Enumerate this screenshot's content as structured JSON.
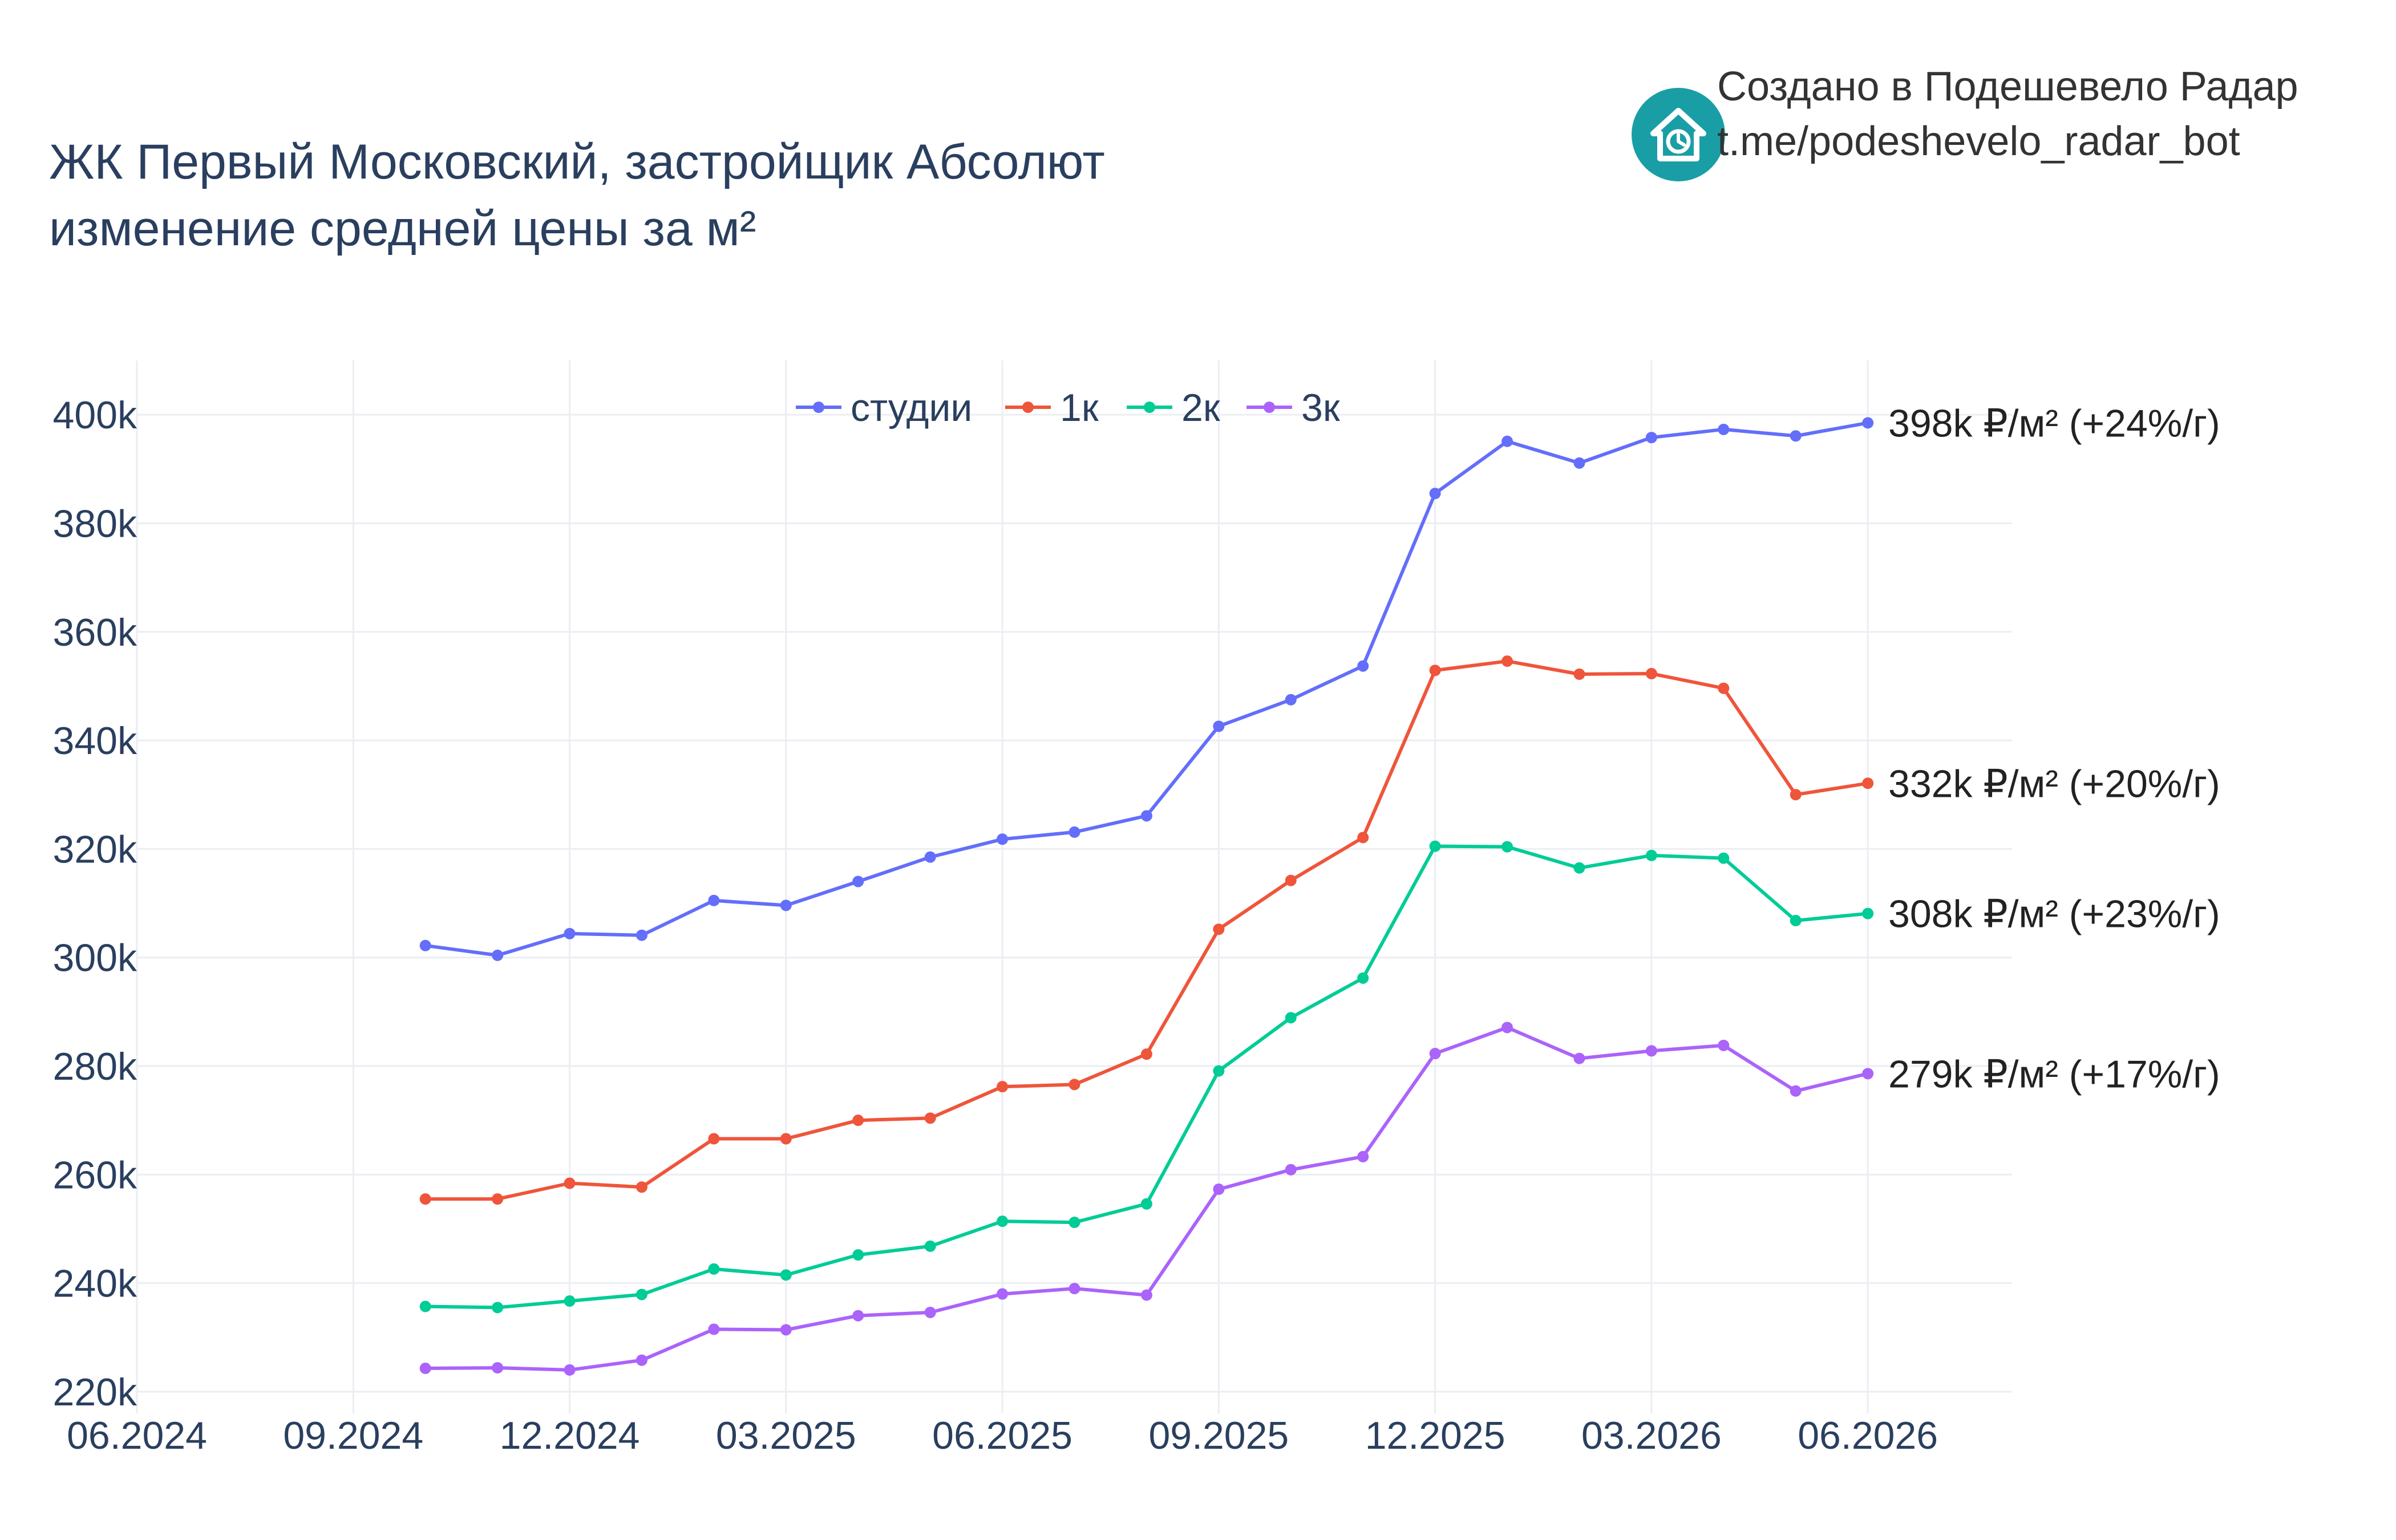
{
  "header": {
    "title_line1": "ЖК Первый Московский, застройщик Абсолют",
    "title_line2": "изменение средней цены за м²"
  },
  "branding": {
    "credit_line1": "Создано в Подешевело Радар",
    "credit_line2": "t.me/podeshevelo_radar_bot",
    "logo_icon": "house-clock-icon",
    "logo_color": "#1a9ea6"
  },
  "chart_data": {
    "type": "line",
    "x_tick_labels": [
      "06.2024",
      "09.2024",
      "12.2024",
      "03.2025",
      "06.2025",
      "09.2025",
      "12.2025",
      "03.2026",
      "06.2026"
    ],
    "y_tick_labels": [
      "220k",
      "240k",
      "260k",
      "280k",
      "300k",
      "320k",
      "340k",
      "360k",
      "380k",
      "400k"
    ],
    "y_ticks": [
      220,
      240,
      260,
      280,
      300,
      320,
      340,
      360,
      380,
      400
    ],
    "ylim": [
      216,
      410
    ],
    "x_range": [
      "2024-06",
      "2026-08"
    ],
    "x": [
      "2024-10",
      "2024-11",
      "2024-12",
      "2025-01",
      "2025-02",
      "2025-03",
      "2025-04",
      "2025-05",
      "2025-06",
      "2025-07",
      "2025-08",
      "2025-09",
      "2025-10",
      "2025-11",
      "2025-12",
      "2026-01",
      "2026-02",
      "2026-03",
      "2026-04",
      "2026-05",
      "2026-06"
    ],
    "grid": true,
    "legend_position": "top-center",
    "series": [
      {
        "name": "студии",
        "color": "#636efa",
        "values": [
          302.2,
          300.4,
          304.4,
          304.1,
          310.5,
          309.6,
          314.0,
          318.5,
          321.8,
          323.1,
          326.1,
          342.6,
          347.5,
          353.7,
          385.5,
          395.1,
          391.1,
          395.8,
          397.3,
          396.1,
          398.5
        ],
        "end_label": "398k ₽/м² (+24%/г)"
      },
      {
        "name": "1к",
        "color": "#ef553b",
        "values": [
          255.5,
          255.5,
          258.4,
          257.7,
          266.6,
          266.6,
          270.0,
          270.4,
          276.2,
          276.6,
          282.2,
          305.2,
          314.2,
          322.1,
          352.9,
          354.6,
          352.2,
          352.3,
          349.6,
          330.0,
          332.1
        ],
        "end_label": "332k ₽/м² (+20%/г)"
      },
      {
        "name": "2к",
        "color": "#00cc96",
        "values": [
          235.7,
          235.5,
          236.7,
          237.9,
          242.6,
          241.5,
          245.2,
          246.8,
          251.4,
          251.2,
          254.6,
          279.1,
          288.9,
          296.2,
          320.5,
          320.4,
          316.5,
          318.8,
          318.3,
          306.8,
          308.1
        ],
        "end_label": "308k ₽/м² (+23%/г)"
      },
      {
        "name": "3к",
        "color": "#ab63fa",
        "values": [
          224.3,
          224.4,
          224.0,
          225.8,
          231.5,
          231.4,
          234.0,
          234.6,
          238.0,
          239.0,
          237.8,
          257.3,
          260.9,
          263.3,
          282.3,
          287.1,
          281.4,
          282.8,
          283.8,
          275.4,
          278.6
        ],
        "end_label": "279k ₽/м² (+17%/г)"
      }
    ]
  }
}
